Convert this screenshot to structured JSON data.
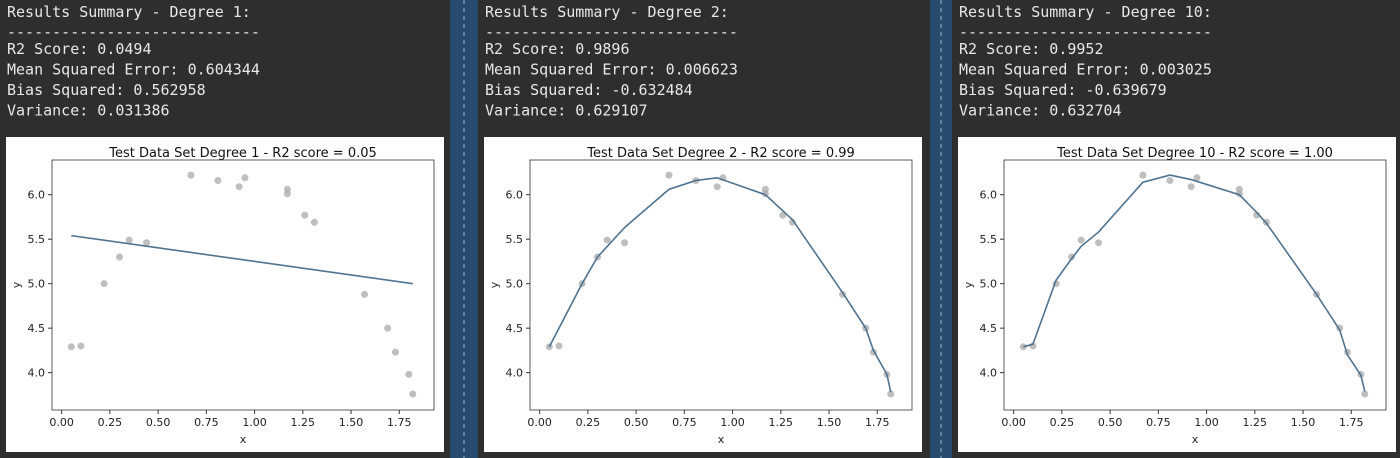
{
  "panels": [
    {
      "title": "Results Summary - Degree 1:",
      "rule": "----------------------------",
      "lines": [
        "R2 Score: 0.0494",
        "Mean Squared Error: 0.604344",
        "Bias Squared: 0.562958",
        "Variance: 0.031386"
      ]
    },
    {
      "title": "Results Summary - Degree 2:",
      "rule": "----------------------------",
      "lines": [
        "R2 Score: 0.9896",
        "Mean Squared Error: 0.006623",
        "Bias Squared: -0.632484",
        "Variance: 0.629107"
      ]
    },
    {
      "title": "Results Summary - Degree 10:",
      "rule": "----------------------------",
      "lines": [
        "R2 Score: 0.9952",
        "Mean Squared Error: 0.003025",
        "Bias Squared: -0.639679",
        "Variance: 0.632704"
      ]
    }
  ],
  "chart_data": [
    {
      "type": "scatter",
      "title": "Test Data Set Degree 1 - R2 score = 0.05",
      "x_label": "x",
      "y_label": "y",
      "xlim": [
        -0.05,
        1.93
      ],
      "ylim": [
        3.58,
        6.39
      ],
      "xticks": [
        {
          "value": 0,
          "label": "0.00"
        },
        0.25,
        {
          "value": 0.5,
          "label": "0.50"
        },
        0.75,
        {
          "value": 1,
          "label": "1.00"
        },
        1.25,
        {
          "value": 1.5,
          "label": "1.50"
        },
        1.75
      ],
      "yticks": [
        {
          "value": 4,
          "label": "4.0"
        },
        4.5,
        {
          "value": 5,
          "label": "5.0"
        },
        5.5,
        {
          "value": 6,
          "label": "6.0"
        }
      ],
      "series": [
        {
          "type": "scatter",
          "color": "#a9a9a9",
          "x": [
            0.05,
            0.1,
            0.22,
            0.3,
            0.35,
            0.44,
            0.67,
            0.81,
            0.92,
            0.95,
            1.17,
            1.17,
            1.26,
            1.31,
            1.57,
            1.69,
            1.73,
            1.8,
            1.82
          ],
          "values": [
            4.29,
            4.3,
            5.0,
            5.3,
            5.49,
            5.46,
            6.22,
            6.16,
            6.09,
            6.19,
            6.06,
            6.01,
            5.77,
            5.69,
            4.88,
            4.5,
            4.23,
            3.98,
            3.76
          ]
        },
        {
          "type": "line",
          "color": "#4f7391",
          "x": [
            0.05,
            1.82
          ],
          "values": [
            5.54,
            5.0
          ]
        }
      ]
    },
    {
      "type": "scatter",
      "title": "Test Data Set Degree 2 - R2 score = 0.99",
      "x_label": "x",
      "y_label": "y",
      "xlim": [
        -0.05,
        1.93
      ],
      "ylim": [
        3.58,
        6.39
      ],
      "xticks": [
        {
          "value": 0,
          "label": "0.00"
        },
        0.25,
        {
          "value": 0.5,
          "label": "0.50"
        },
        0.75,
        {
          "value": 1,
          "label": "1.00"
        },
        1.25,
        {
          "value": 1.5,
          "label": "1.50"
        },
        1.75
      ],
      "yticks": [
        {
          "value": 4,
          "label": "4.0"
        },
        4.5,
        {
          "value": 5,
          "label": "5.0"
        },
        5.5,
        {
          "value": 6,
          "label": "6.0"
        }
      ],
      "series": [
        {
          "type": "scatter",
          "color": "#a9a9a9",
          "x": [
            0.05,
            0.1,
            0.22,
            0.3,
            0.35,
            0.44,
            0.67,
            0.81,
            0.92,
            0.95,
            1.17,
            1.17,
            1.26,
            1.31,
            1.57,
            1.69,
            1.73,
            1.8,
            1.82
          ],
          "values": [
            4.29,
            4.3,
            5.0,
            5.3,
            5.49,
            5.46,
            6.22,
            6.16,
            6.09,
            6.19,
            6.06,
            6.01,
            5.77,
            5.69,
            4.88,
            4.5,
            4.23,
            3.98,
            3.76
          ]
        },
        {
          "type": "line",
          "color": "#4f7391",
          "x": [
            0.05,
            0.22,
            0.3,
            0.44,
            0.67,
            0.81,
            0.92,
            1.17,
            1.26,
            1.31,
            1.57,
            1.69,
            1.73,
            1.8,
            1.82
          ],
          "values": [
            4.29,
            5.0,
            5.3,
            5.63,
            6.06,
            6.16,
            6.19,
            6.0,
            5.82,
            5.72,
            4.9,
            4.5,
            4.25,
            3.98,
            3.78
          ]
        }
      ]
    },
    {
      "type": "scatter",
      "title": "Test Data Set Degree 10 - R2 score = 1.00",
      "x_label": "x",
      "y_label": "y",
      "xlim": [
        -0.05,
        1.93
      ],
      "ylim": [
        3.58,
        6.39
      ],
      "xticks": [
        {
          "value": 0,
          "label": "0.00"
        },
        0.25,
        {
          "value": 0.5,
          "label": "0.50"
        },
        0.75,
        {
          "value": 1,
          "label": "1.00"
        },
        1.25,
        {
          "value": 1.5,
          "label": "1.50"
        },
        1.75
      ],
      "yticks": [
        {
          "value": 4,
          "label": "4.0"
        },
        4.5,
        {
          "value": 5,
          "label": "5.0"
        },
        5.5,
        {
          "value": 6,
          "label": "6.0"
        }
      ],
      "series": [
        {
          "type": "scatter",
          "color": "#a9a9a9",
          "x": [
            0.05,
            0.1,
            0.22,
            0.3,
            0.35,
            0.44,
            0.67,
            0.81,
            0.92,
            0.95,
            1.17,
            1.17,
            1.26,
            1.31,
            1.57,
            1.69,
            1.73,
            1.8,
            1.82
          ],
          "values": [
            4.29,
            4.3,
            5.0,
            5.3,
            5.49,
            5.46,
            6.22,
            6.16,
            6.09,
            6.19,
            6.06,
            6.01,
            5.77,
            5.69,
            4.88,
            4.5,
            4.23,
            3.98,
            3.76
          ]
        },
        {
          "type": "line",
          "color": "#4f7391",
          "x": [
            0.05,
            0.1,
            0.22,
            0.3,
            0.35,
            0.44,
            0.67,
            0.81,
            0.92,
            1.17,
            1.26,
            1.31,
            1.57,
            1.69,
            1.73,
            1.8,
            1.82
          ],
          "values": [
            4.29,
            4.32,
            5.04,
            5.28,
            5.42,
            5.58,
            6.14,
            6.22,
            6.17,
            6.0,
            5.8,
            5.68,
            4.88,
            4.48,
            4.2,
            3.97,
            3.79
          ]
        }
      ]
    }
  ]
}
